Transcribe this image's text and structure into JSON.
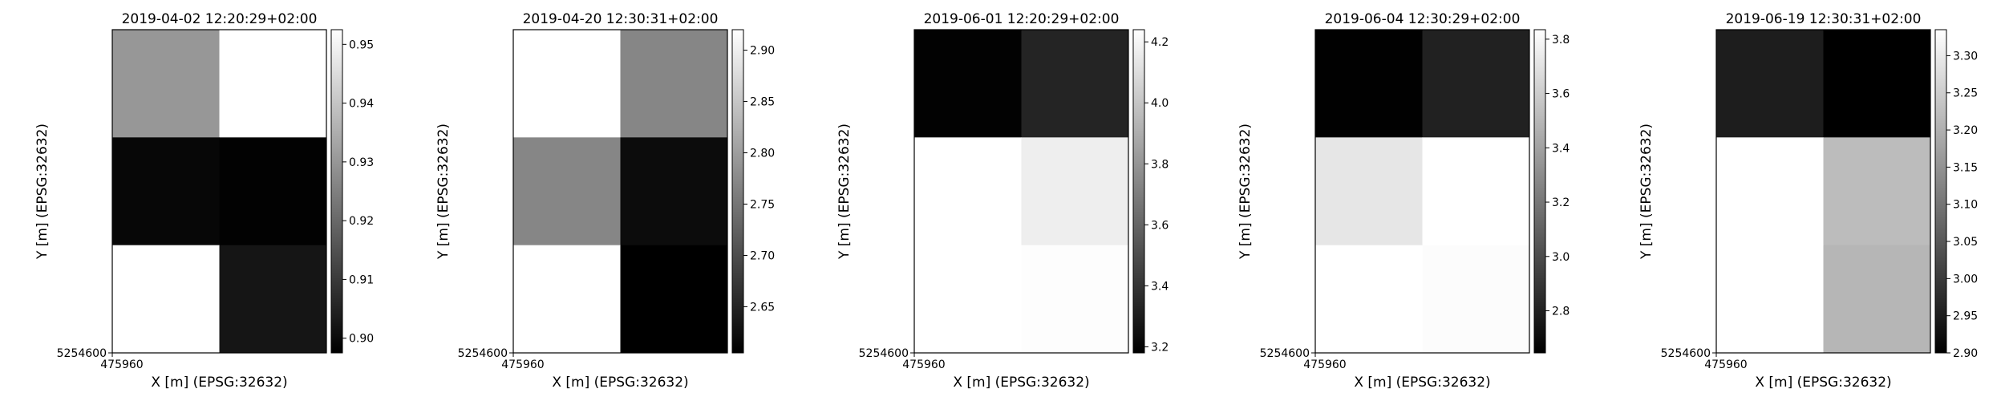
{
  "chart_data": [
    {
      "type": "heatmap",
      "title": "2019-04-02 12:20:29+02:00",
      "xlabel": "X [m] (EPSG:32632)",
      "ylabel": "Y [m] (EPSG:32632)",
      "x_tick_labels": [
        "475960"
      ],
      "y_tick_labels": [
        "5254600"
      ],
      "colormap": "gray",
      "vmin": 0.8975,
      "vmax": 0.9525,
      "values": [
        [
          0.93,
          0.953
        ],
        [
          0.899,
          0.898
        ],
        [
          0.953,
          0.902
        ]
      ],
      "colorbar_ticks": [
        "0.90",
        "0.91",
        "0.92",
        "0.93",
        "0.94",
        "0.95"
      ],
      "colorbar_tick_values": [
        0.9,
        0.91,
        0.92,
        0.93,
        0.94,
        0.95
      ]
    },
    {
      "type": "heatmap",
      "title": "2019-04-20 12:30:31+02:00",
      "xlabel": "X [m] (EPSG:32632)",
      "ylabel": "Y [m] (EPSG:32632)",
      "x_tick_labels": [
        "475960"
      ],
      "y_tick_labels": [
        "5254600"
      ],
      "colormap": "gray",
      "vmin": 2.605,
      "vmax": 2.92,
      "values": [
        [
          2.92,
          2.77
        ],
        [
          2.77,
          2.62
        ],
        [
          2.92,
          2.605
        ]
      ],
      "colorbar_ticks": [
        "2.65",
        "2.70",
        "2.75",
        "2.80",
        "2.85",
        "2.90"
      ],
      "colorbar_tick_values": [
        2.65,
        2.7,
        2.75,
        2.8,
        2.85,
        2.9
      ]
    },
    {
      "type": "heatmap",
      "title": "2019-06-01 12:20:29+02:00",
      "xlabel": "X [m] (EPSG:32632)",
      "ylabel": "Y [m] (EPSG:32632)",
      "x_tick_labels": [
        "475960"
      ],
      "y_tick_labels": [
        "5254600"
      ],
      "colormap": "gray",
      "vmin": 3.18,
      "vmax": 4.24,
      "values": [
        [
          3.19,
          3.33
        ],
        [
          4.24,
          4.17
        ],
        [
          4.24,
          4.23
        ]
      ],
      "colorbar_ticks": [
        "3.2",
        "3.4",
        "3.6",
        "3.8",
        "4.0",
        "4.2"
      ],
      "colorbar_tick_values": [
        3.2,
        3.4,
        3.6,
        3.8,
        4.0,
        4.2
      ]
    },
    {
      "type": "heatmap",
      "title": "2019-06-04 12:30:29+02:00",
      "xlabel": "X [m] (EPSG:32632)",
      "ylabel": "Y [m] (EPSG:32632)",
      "x_tick_labels": [
        "475960"
      ],
      "y_tick_labels": [
        "5254600"
      ],
      "colormap": "gray",
      "vmin": 2.645,
      "vmax": 3.835,
      "values": [
        [
          2.65,
          2.8
        ],
        [
          3.72,
          3.835
        ],
        [
          3.835,
          3.82
        ]
      ],
      "colorbar_ticks": [
        "2.8",
        "3.0",
        "3.2",
        "3.4",
        "3.6",
        "3.8"
      ],
      "colorbar_tick_values": [
        2.8,
        3.0,
        3.2,
        3.4,
        3.6,
        3.8
      ]
    },
    {
      "type": "heatmap",
      "title": "2019-06-19 12:30:31+02:00",
      "xlabel": "X [m] (EPSG:32632)",
      "ylabel": "Y [m] (EPSG:32632)",
      "x_tick_labels": [
        "475960"
      ],
      "y_tick_labels": [
        "5254600"
      ],
      "colormap": "gray",
      "vmin": 2.9,
      "vmax": 3.335,
      "values": [
        [
          2.95,
          2.9
        ],
        [
          3.335,
          3.22
        ],
        [
          3.335,
          3.21
        ]
      ],
      "colorbar_ticks": [
        "2.90",
        "2.95",
        "3.00",
        "3.05",
        "3.10",
        "3.15",
        "3.20",
        "3.25",
        "3.30"
      ],
      "colorbar_tick_values": [
        2.9,
        2.95,
        3.0,
        3.05,
        3.1,
        3.15,
        3.2,
        3.25,
        3.3
      ]
    }
  ]
}
